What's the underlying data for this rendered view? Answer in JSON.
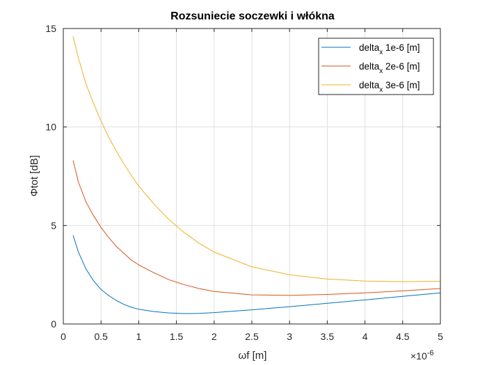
{
  "chart_data": {
    "type": "line",
    "title": "Rozsuniecie soczewki i włókna",
    "xlabel": "ωf [m]",
    "ylabel": "Φtot [dB]",
    "x_exponent": "×10",
    "x_exponent_power": "-6",
    "xlim": [
      0,
      5
    ],
    "ylim": [
      0,
      15
    ],
    "xticks": [
      "0",
      "0.5",
      "1",
      "1.5",
      "2",
      "2.5",
      "3",
      "3.5",
      "4",
      "4.5",
      "5"
    ],
    "yticks": [
      "0",
      "5",
      "10",
      "15"
    ],
    "grid": true,
    "legend_position": "top-right",
    "series": [
      {
        "name_main": "delta",
        "name_sub": "x",
        "name_rest": " 1e-6 [m]",
        "color": "#0072BD",
        "x": [
          0.13,
          0.2,
          0.3,
          0.4,
          0.5,
          0.6,
          0.7,
          0.8,
          0.9,
          1.0,
          1.2,
          1.4,
          1.6,
          1.7,
          1.8,
          2.0,
          2.5,
          3.0,
          3.5,
          4.0,
          4.5,
          5.0
        ],
        "y": [
          4.5,
          3.65,
          2.8,
          2.2,
          1.75,
          1.45,
          1.2,
          1.0,
          0.85,
          0.75,
          0.63,
          0.56,
          0.53,
          0.53,
          0.54,
          0.58,
          0.72,
          0.88,
          1.05,
          1.22,
          1.4,
          1.58
        ]
      },
      {
        "name_main": "delta",
        "name_sub": "x",
        "name_rest": " 2e-6 [m]",
        "color": "#D95319",
        "x": [
          0.13,
          0.2,
          0.3,
          0.4,
          0.5,
          0.6,
          0.7,
          0.8,
          0.9,
          1.0,
          1.2,
          1.4,
          1.6,
          1.8,
          2.0,
          2.5,
          3.0,
          3.5,
          4.0,
          4.5,
          5.0
        ],
        "y": [
          8.3,
          7.2,
          6.2,
          5.5,
          4.9,
          4.4,
          3.95,
          3.6,
          3.25,
          3.0,
          2.6,
          2.25,
          2.0,
          1.8,
          1.65,
          1.48,
          1.45,
          1.5,
          1.58,
          1.68,
          1.8
        ]
      },
      {
        "name_main": "delta",
        "name_sub": "x",
        "name_rest": " 3e-6 [m]",
        "color": "#EDB120",
        "x": [
          0.13,
          0.2,
          0.3,
          0.4,
          0.5,
          0.6,
          0.7,
          0.8,
          0.9,
          1.0,
          1.2,
          1.4,
          1.6,
          1.8,
          2.0,
          2.5,
          3.0,
          3.5,
          4.0,
          4.5,
          5.0
        ],
        "y": [
          14.6,
          13.5,
          12.2,
          11.2,
          10.3,
          9.5,
          8.8,
          8.15,
          7.55,
          7.0,
          6.1,
          5.3,
          4.65,
          4.1,
          3.65,
          2.9,
          2.5,
          2.28,
          2.18,
          2.15,
          2.17
        ]
      }
    ]
  }
}
